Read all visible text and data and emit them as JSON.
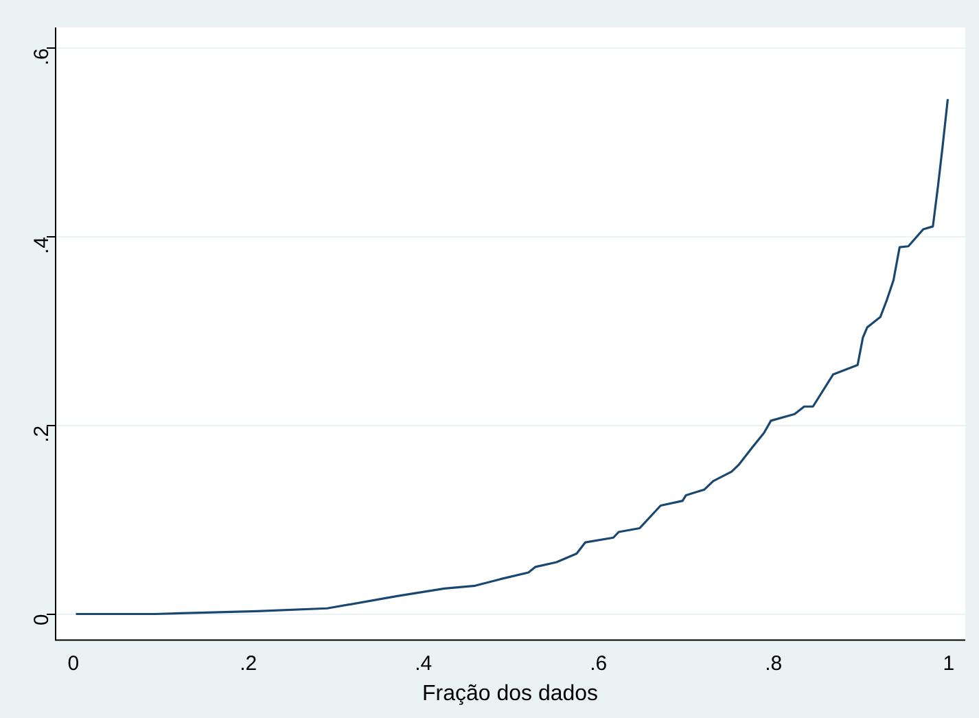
{
  "chart_data": {
    "type": "line",
    "xlabel": "Fração dos dados",
    "x": [
      0.003,
      0.093,
      0.21,
      0.29,
      0.37,
      0.424,
      0.459,
      0.488,
      0.52,
      0.528,
      0.552,
      0.575,
      0.585,
      0.617,
      0.623,
      0.647,
      0.655,
      0.671,
      0.696,
      0.7,
      0.721,
      0.731,
      0.752,
      0.76,
      0.776,
      0.789,
      0.797,
      0.824,
      0.835,
      0.845,
      0.868,
      0.896,
      0.902,
      0.907,
      0.922,
      0.929,
      0.937,
      0.944,
      0.954,
      0.971,
      0.982,
      0.988,
      0.993,
      0.999
    ],
    "series": [
      {
        "color": "#1a476f",
        "values": [
          0,
          0,
          0.003,
          0.006,
          0.019,
          0.027,
          0.03,
          0.037,
          0.044,
          0.05,
          0.055,
          0.064,
          0.076,
          0.081,
          0.087,
          0.091,
          0.099,
          0.115,
          0.12,
          0.126,
          0.132,
          0.141,
          0.151,
          0.158,
          0.177,
          0.192,
          0.205,
          0.212,
          0.22,
          0.22,
          0.254,
          0.264,
          0.293,
          0.304,
          0.315,
          0.332,
          0.354,
          0.389,
          0.39,
          0.408,
          0.411,
          0.455,
          0.495,
          0.546
        ]
      }
    ],
    "xlim": [
      -0.021,
      1.019
    ],
    "ylim": [
      -0.027,
      0.622
    ],
    "xticks": [
      0,
      {
        "value": 0.2,
        "label": ".2"
      },
      {
        "value": 0.4,
        "label": ".4"
      },
      {
        "value": 0.6,
        "label": ".6"
      },
      {
        "value": 0.8,
        "label": ".8"
      },
      1
    ],
    "yticks": [
      0,
      {
        "value": 0.2,
        "label": ".2"
      },
      {
        "value": 0.4,
        "label": ".4"
      },
      {
        "value": 0.6,
        "label": ".6"
      }
    ],
    "grid": "y",
    "marker": "none",
    "line_style": "solid"
  }
}
